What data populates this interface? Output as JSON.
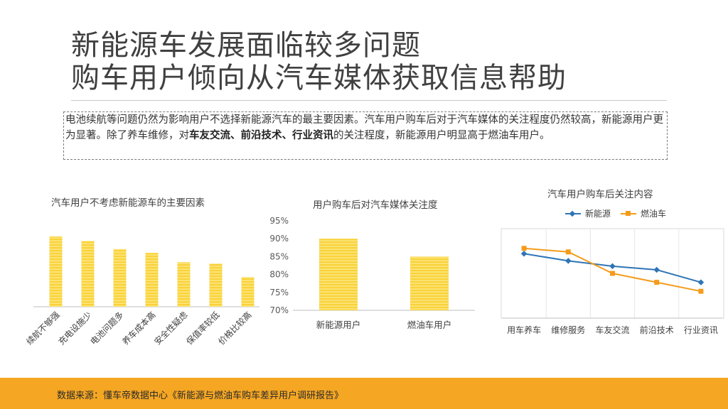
{
  "header": {
    "title_line1": "新能源车发展面临较多问题",
    "title_line2": "购车用户倾向从汽车媒体获取信息帮助"
  },
  "summary": {
    "part1": "电池续航等问题仍然为影响用户不选择新能源汽车的最主要因素。汽车用户购车后对于汽车媒体的关注程度仍然较高，新能源用户更为显著。除了养车维修，对",
    "bold": "车友交流、前沿技术、行业资讯",
    "part2": "的关注程度，新能源用户明显高于燃油车用户。"
  },
  "colors": {
    "bar_yellow": "#f9d33a",
    "bar_stripe": "#fff3b8",
    "line_blue": "#2e75b6",
    "line_orange": "#f39c1b",
    "footer": "#f5a623",
    "axis": "#bfbfbf"
  },
  "chart_data": [
    {
      "type": "bar",
      "title": "汽车用户不考虑新能源车的主要因素",
      "categories": [
        "续航不够强",
        "充电设施少",
        "电池问题多",
        "养车成本高",
        "安全性疑虑",
        "保值率较低",
        "价格比较高"
      ],
      "values": [
        90,
        84,
        74,
        69,
        57,
        55,
        38
      ],
      "y_axis_shown": false
    },
    {
      "type": "bar",
      "title": "用户购车后对汽车媒体关注度",
      "categories": [
        "新能源用户",
        "燃油车用户"
      ],
      "values": [
        90,
        85
      ],
      "ylim": [
        70,
        95
      ],
      "yticks": [
        "70%",
        "75%",
        "80%",
        "85%",
        "90%",
        "95%"
      ]
    },
    {
      "type": "line",
      "title": "汽车用户购车后关注内容",
      "categories": [
        "用车养车",
        "维修服务",
        "车友交流",
        "前沿技术",
        "行业资讯"
      ],
      "series": [
        {
          "name": "新能源",
          "values": [
            86,
            82,
            79,
            77,
            70
          ]
        },
        {
          "name": "燃油车",
          "values": [
            89,
            87,
            75,
            70,
            65
          ]
        }
      ],
      "ylim": [
        50,
        100
      ],
      "grid": "vertical",
      "legend": "top"
    }
  ],
  "footer": {
    "source": "数据来源：懂车帝数据中心《新能源与燃油车购车差异用户调研报告》"
  }
}
